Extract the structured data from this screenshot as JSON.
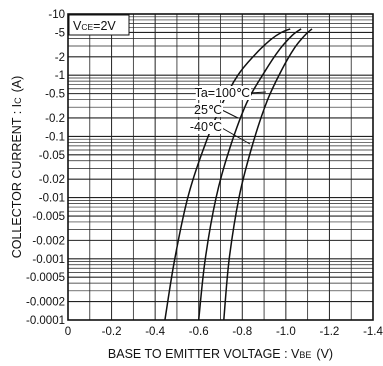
{
  "chart_data": {
    "type": "line",
    "title": "",
    "xlabel": {
      "main": "BASE TO EMITTER VOLTAGE : V",
      "sub": "BE",
      "unit": "(V)"
    },
    "ylabel": {
      "main": "COLLECTOR CURRENT : I",
      "sub": "C",
      "unit": "(A)"
    },
    "xlim": [
      0,
      -1.4
    ],
    "ylim": [
      -0.0001,
      -10
    ],
    "y_scale": "log",
    "grid": true,
    "x_ticks": [
      "0",
      "-0.2",
      "-0.4",
      "-0.6",
      "-0.8",
      "-1.0",
      "-1.2",
      "-1.4"
    ],
    "y_ticks": [
      "-10",
      "-5",
      "-2",
      "-1",
      "-0.5",
      "-0.2",
      "-0.1",
      "-0.05",
      "-0.02",
      "-0.01",
      "-0.005",
      "-0.002",
      "-0.001",
      "-0.0005",
      "-0.0002",
      "-0.0001"
    ],
    "condition": {
      "main": "V",
      "sub": "CE",
      "rest": "=2V"
    },
    "series": [
      {
        "name": "Ta=100℃",
        "x": [
          -0.445,
          -0.49,
          -0.55,
          -0.62,
          -0.7,
          -0.78,
          -0.86,
          -0.93,
          -0.98,
          -1.02
        ],
        "y": [
          -0.0001,
          -0.001,
          -0.01,
          -0.06,
          -0.3,
          -1.0,
          -2.2,
          -3.8,
          -5.0,
          -5.7
        ]
      },
      {
        "name": "25℃",
        "x": [
          -0.6,
          -0.63,
          -0.68,
          -0.74,
          -0.82,
          -0.9,
          -0.97,
          -1.03,
          -1.07
        ],
        "y": [
          -0.0001,
          -0.001,
          -0.01,
          -0.06,
          -0.35,
          -1.1,
          -2.6,
          -4.5,
          -5.7
        ]
      },
      {
        "name": "-40℃",
        "x": [
          -0.715,
          -0.74,
          -0.785,
          -0.84,
          -0.91,
          -0.98,
          -1.04,
          -1.09,
          -1.12
        ],
        "y": [
          -0.0001,
          -0.001,
          -0.01,
          -0.06,
          -0.35,
          -1.2,
          -2.8,
          -4.6,
          -5.7
        ]
      }
    ]
  }
}
